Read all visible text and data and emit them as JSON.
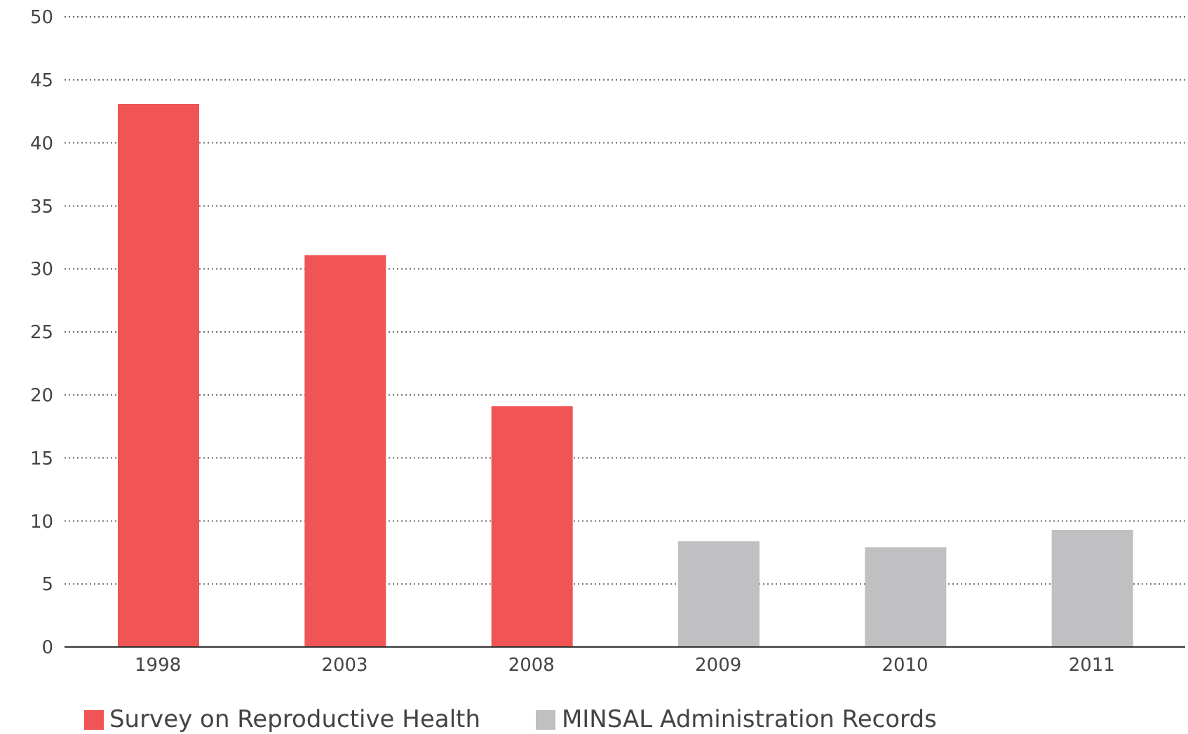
{
  "chart_data": {
    "type": "bar",
    "categories": [
      "1998",
      "2003",
      "2008",
      "2009",
      "2010",
      "2011"
    ],
    "series": [
      {
        "name": "Survey on Reproductive Health",
        "color": "#f05454",
        "values": [
          43.1,
          31.1,
          19.1,
          null,
          null,
          null
        ]
      },
      {
        "name": "MINSAL Administration Records",
        "color": "#c0bfc1",
        "values": [
          null,
          null,
          null,
          8.4,
          7.9,
          9.3
        ]
      }
    ],
    "stacked": true,
    "ylim": [
      0,
      50
    ],
    "yticks": [
      0,
      5,
      10,
      15,
      20,
      25,
      30,
      35,
      40,
      45,
      50
    ],
    "grid": "y",
    "legend": "bottom left"
  }
}
